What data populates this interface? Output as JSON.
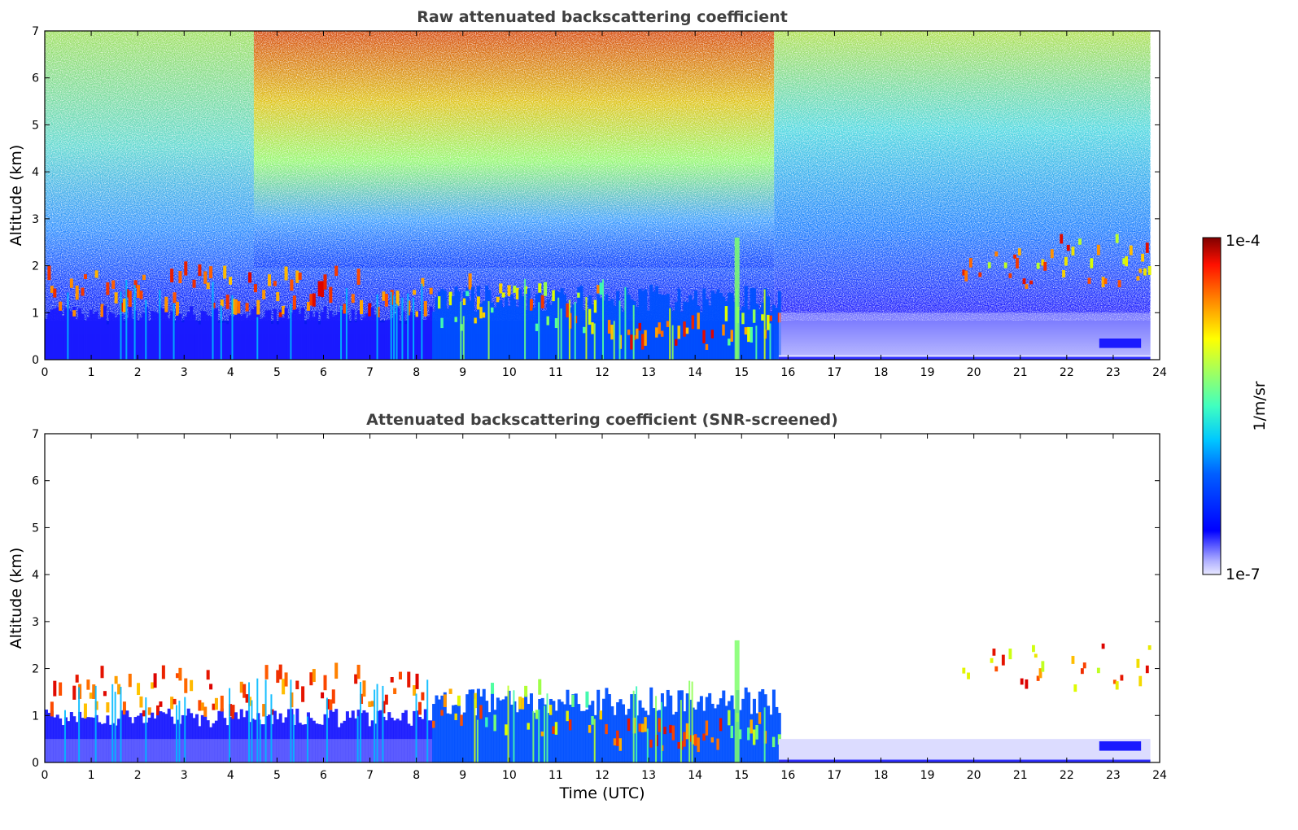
{
  "chart_data": [
    {
      "type": "heatmap",
      "title": "Raw attenuated backscattering coefficient",
      "xlabel": "",
      "ylabel": "Altitude (km)",
      "xlim": [
        0,
        24
      ],
      "ylim": [
        0,
        7
      ],
      "x_ticks": [
        "0",
        "1",
        "2",
        "3",
        "4",
        "5",
        "6",
        "7",
        "8",
        "9",
        "10",
        "11",
        "12",
        "13",
        "14",
        "15",
        "16",
        "17",
        "18",
        "19",
        "20",
        "21",
        "22",
        "23",
        "24"
      ],
      "y_ticks": [
        "0",
        "1",
        "2",
        "3",
        "4",
        "5",
        "6",
        "7"
      ],
      "colorscale": "jet",
      "grid": false,
      "features": [
        {
          "layer": "near-surface aerosol / boundary layer",
          "time_start": 0,
          "time_end": 15.8,
          "altitude_top_km": 1.8
        },
        {
          "layer": "cloud layer",
          "time_start": 0,
          "time_end": 16,
          "altitude_range_km": [
            0.2,
            2.0
          ]
        },
        {
          "layer": "elevated cloud",
          "time_start": 19.6,
          "time_end": 23.8,
          "altitude_range_km": [
            1.5,
            2.6
          ]
        },
        {
          "layer": "high background noise",
          "time_start": 4.5,
          "time_end": 15.7,
          "altitude_range_km": [
            3,
            7
          ]
        }
      ]
    },
    {
      "type": "heatmap",
      "title": "Attenuated backscattering coefficient (SNR-screened)",
      "xlabel": "Time (UTC)",
      "ylabel": "Altitude (km)",
      "xlim": [
        0,
        24
      ],
      "ylim": [
        0,
        7
      ],
      "x_ticks": [
        "0",
        "1",
        "2",
        "3",
        "4",
        "5",
        "6",
        "7",
        "8",
        "9",
        "10",
        "11",
        "12",
        "13",
        "14",
        "15",
        "16",
        "17",
        "18",
        "19",
        "20",
        "21",
        "22",
        "23",
        "24"
      ],
      "y_ticks": [
        "0",
        "1",
        "2",
        "3",
        "4",
        "5",
        "6",
        "7"
      ],
      "colorscale": "jet",
      "grid": false,
      "features": [
        {
          "layer": "near-surface aerosol / boundary layer",
          "time_start": 0,
          "time_end": 15.8,
          "altitude_top_km": 1.8
        },
        {
          "layer": "cloud layer",
          "time_start": 0,
          "time_end": 16,
          "altitude_range_km": [
            0.2,
            2.0
          ]
        },
        {
          "layer": "elevated cloud",
          "time_start": 19.6,
          "time_end": 23.8,
          "altitude_range_km": [
            1.5,
            2.6
          ]
        },
        {
          "layer": "faint surface layer",
          "time_start": 15.8,
          "time_end": 23.8,
          "altitude_range_km": [
            0,
            0.5
          ]
        }
      ]
    }
  ],
  "colorbar": {
    "label": "1/m/sr",
    "max_label": "1e-4",
    "min_label": "1e-7",
    "scale": "log",
    "range": [
      1e-07,
      0.0001
    ]
  }
}
